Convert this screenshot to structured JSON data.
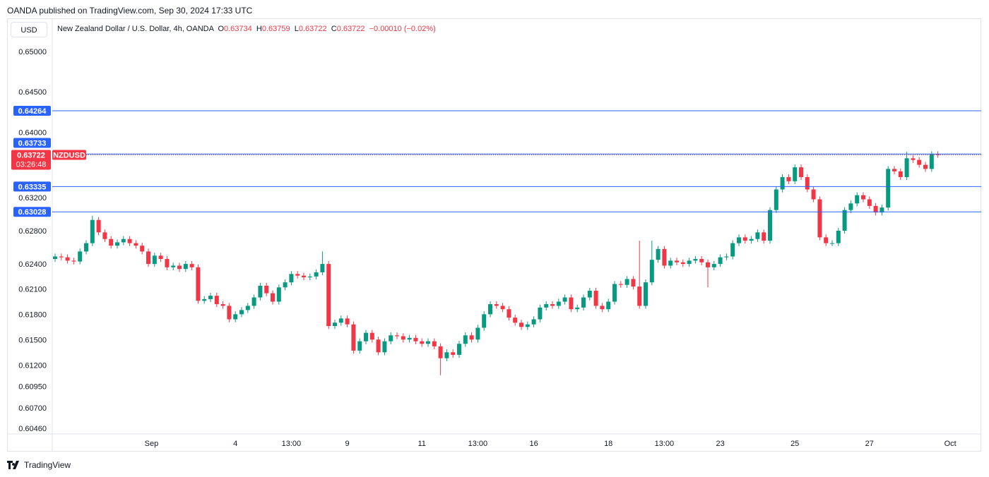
{
  "published": "OANDA published on TradingView.com, Sep 30, 2024 17:33 UTC",
  "currency_button": "USD",
  "legend": {
    "symbol": "New Zealand Dollar / U.S. Dollar, 4h, OANDA",
    "o_label": "O",
    "o": "0.63734",
    "h_label": "H",
    "h": "0.63759",
    "l_label": "L",
    "l": "0.63722",
    "c_label": "C",
    "c": "0.63722",
    "change": "−0.00010 (−0.02%)"
  },
  "footer": {
    "brand": "TradingView"
  },
  "colors": {
    "up": "#089981",
    "down": "#f23645",
    "level": "#2962ff"
  },
  "chart_data": {
    "type": "candlestick",
    "title": "New Zealand Dollar / U.S. Dollar, 4h, OANDA",
    "scale": "log",
    "ylim": [
      0.6046,
      0.65
    ],
    "y_ticks": [
      "0.65000",
      "0.64500",
      "0.64000",
      "0.63200",
      "0.62800",
      "0.62400",
      "0.62100",
      "0.61800",
      "0.61500",
      "0.61200",
      "0.60950",
      "0.60700",
      "0.60460"
    ],
    "x_ticks": [
      {
        "label": "Sep",
        "index": 15.5
      },
      {
        "label": "4",
        "index": 29
      },
      {
        "label": "13:00",
        "index": 38
      },
      {
        "label": "9",
        "index": 47
      },
      {
        "label": "11",
        "index": 59
      },
      {
        "label": "13:00",
        "index": 68
      },
      {
        "label": "16",
        "index": 77
      },
      {
        "label": "18",
        "index": 89
      },
      {
        "label": "13:00",
        "index": 98
      },
      {
        "label": "23",
        "index": 107
      },
      {
        "label": "25",
        "index": 119
      },
      {
        "label": "27",
        "index": 131
      },
      {
        "label": "Oct",
        "index": 144
      }
    ],
    "first_open": 0.6246,
    "closes": [
      0.6249,
      0.6248,
      0.6244,
      0.6243,
      0.6255,
      0.6265,
      0.6293,
      0.6278,
      0.627,
      0.6262,
      0.6266,
      0.627,
      0.6265,
      0.6262,
      0.6255,
      0.624,
      0.625,
      0.6246,
      0.6236,
      0.6238,
      0.6234,
      0.624,
      0.6236,
      0.6196,
      0.6198,
      0.6202,
      0.6192,
      0.619,
      0.6174,
      0.618,
      0.6185,
      0.619,
      0.62,
      0.6214,
      0.6205,
      0.6195,
      0.6212,
      0.6218,
      0.6228,
      0.6226,
      0.6224,
      0.6225,
      0.623,
      0.624,
      0.6166,
      0.617,
      0.6175,
      0.6168,
      0.6137,
      0.6148,
      0.6158,
      0.615,
      0.6135,
      0.6148,
      0.6155,
      0.6154,
      0.615,
      0.6152,
      0.6148,
      0.6145,
      0.6148,
      0.6142,
      0.6128,
      0.6135,
      0.6132,
      0.6145,
      0.6155,
      0.615,
      0.6164,
      0.618,
      0.6192,
      0.619,
      0.6186,
      0.6176,
      0.617,
      0.6165,
      0.6168,
      0.6174,
      0.6188,
      0.6192,
      0.619,
      0.6195,
      0.62,
      0.6186,
      0.6188,
      0.62,
      0.6208,
      0.619,
      0.6186,
      0.6195,
      0.6216,
      0.6215,
      0.6222,
      0.6213,
      0.619,
      0.6218,
      0.6245,
      0.6258,
      0.6238,
      0.6244,
      0.6242,
      0.624,
      0.6244,
      0.6246,
      0.6242,
      0.6236,
      0.624,
      0.6248,
      0.6249,
      0.6265,
      0.6272,
      0.6268,
      0.627,
      0.6278,
      0.6268,
      0.6305,
      0.633,
      0.6345,
      0.634,
      0.6357,
      0.6345,
      0.633,
      0.6318,
      0.6272,
      0.6265,
      0.6265,
      0.628,
      0.6305,
      0.6313,
      0.6323,
      0.6318,
      0.631,
      0.6302,
      0.6308,
      0.6355,
      0.6352,
      0.6345,
      0.6368,
      0.6366,
      0.636,
      0.6355,
      0.6373,
      0.63722
    ],
    "wick_overrides": [
      {
        "index": 6,
        "high": 0.6298
      },
      {
        "index": 43,
        "high": 0.6255
      },
      {
        "index": 62,
        "low": 0.6108
      },
      {
        "index": 94,
        "high": 0.6268
      },
      {
        "index": 96,
        "high": 0.6268
      },
      {
        "index": 105,
        "low": 0.6212
      },
      {
        "index": 137,
        "high": 0.63759
      }
    ],
    "levels": [
      {
        "label": "0.64264",
        "price": 0.64264
      },
      {
        "label": "0.63733",
        "price": 0.63733
      },
      {
        "label": "0.63335",
        "price": 0.63335
      },
      {
        "label": "0.63028",
        "price": 0.63028
      }
    ],
    "last_price": {
      "label": "0.63722",
      "price": 0.63722,
      "symbol": "NZDUSD",
      "countdown": "03:26:48"
    }
  }
}
